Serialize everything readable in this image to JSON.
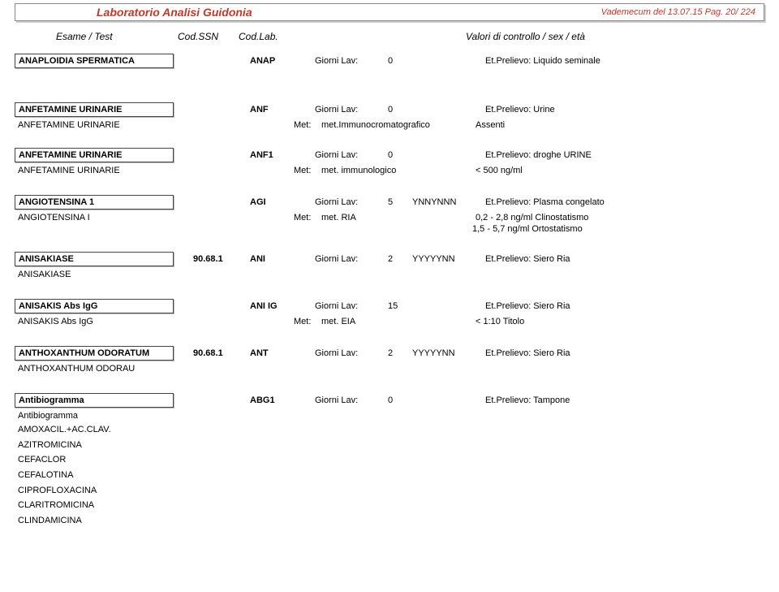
{
  "header": {
    "title": "Laboratorio Analisi Guidonia",
    "right": "Vademecum del 13.07.15 Pag. 20/ 224"
  },
  "columns": {
    "esame": "Esame / Test",
    "codssn": "Cod.SSN",
    "codlab": "Cod.Lab.",
    "valori": "Valori di controllo  / sex / età"
  },
  "tests": [
    {
      "name": "ANAPLOIDIA SPERMATICA",
      "codssn": "",
      "codlab": "ANAP",
      "giorni_label": "Giorni Lav:",
      "giorni": "0",
      "pattern": "",
      "prelievo_label": "Et.Prelievo:",
      "prelievo": "Liquido seminale",
      "subs": [],
      "gap_after": 28
    },
    {
      "name": "ANFETAMINE URINARIE",
      "codssn": "",
      "codlab": "ANF",
      "giorni_label": "Giorni Lav:",
      "giorni": "0",
      "pattern": "",
      "prelievo_label": "Et.Prelievo:",
      "prelievo": "Urine",
      "subs": [
        {
          "name": "ANFETAMINE URINARIE",
          "met_label": "Met:",
          "met": "met.Immunocromatografico",
          "result": "Assenti"
        }
      ],
      "gap_after": 8
    },
    {
      "name": "ANFETAMINE URINARIE",
      "codssn": "",
      "codlab": "ANF1",
      "giorni_label": "Giorni Lav:",
      "giorni": "0",
      "pattern": "",
      "prelievo_label": "Et.Prelievo:",
      "prelievo": "droghe URINE",
      "subs": [
        {
          "name": "ANFETAMINE URINARIE",
          "met_label": "Met:",
          "met": "met. immunologico",
          "result": "< 500 ng/ml"
        }
      ],
      "gap_after": 10
    },
    {
      "name": "ANGIOTENSINA 1",
      "codssn": "",
      "codlab": "AGI",
      "giorni_label": "Giorni Lav:",
      "giorni": "5",
      "pattern": "YNNYNNN",
      "prelievo_label": "Et.Prelievo:",
      "prelievo": "Plasma congelato",
      "subs": [
        {
          "name": "ANGIOTENSINA I",
          "met_label": "Met:",
          "met": "met. RIA",
          "result": "0,2 - 2,8 ng/ml Clinostatismo",
          "extra": "1,5 - 5,7 ng/ml Ortostatismo"
        }
      ],
      "gap_after": 8
    },
    {
      "name": "ANISAKIASE",
      "codssn": "90.68.1",
      "codlab": "ANI",
      "giorni_label": "Giorni Lav:",
      "giorni": "2",
      "pattern": "YYYYYNN",
      "prelievo_label": "Et.Prelievo:",
      "prelievo": "Siero Ria",
      "subs": [
        {
          "name": "ANISAKIASE"
        }
      ],
      "gap_after": 10
    },
    {
      "name": "ANISAKIS Abs IgG",
      "codssn": "",
      "codlab": "ANI IG",
      "giorni_label": "Giorni Lav:",
      "giorni": "15",
      "pattern": "",
      "prelievo_label": "Et.Prelievo:",
      "prelievo": "Siero Ria",
      "subs": [
        {
          "name": "ANISAKIS Abs IgG",
          "met_label": "Met:",
          "met": "met. EIA",
          "result": "< 1:10 Titolo"
        }
      ],
      "gap_after": 10
    },
    {
      "name": "ANTHOXANTHUM ODORATUM",
      "codssn": "90.68.1",
      "codlab": "ANT",
      "giorni_label": "Giorni Lav:",
      "giorni": "2",
      "pattern": "YYYYYNN",
      "prelievo_label": "Et.Prelievo:",
      "prelievo": "Siero Ria",
      "subs": [
        {
          "name": "ANTHOXANTHUM ODORAU"
        }
      ],
      "gap_after": 10
    },
    {
      "name": "Antibiogramma",
      "codssn": "",
      "codlab": "ABG1",
      "giorni_label": "Giorni Lav:",
      "giorni": "0",
      "pattern": "",
      "prelievo_label": "Et.Prelievo:",
      "prelievo": "Tampone",
      "subs": [
        {
          "name": "Antibiogramma"
        }
      ],
      "list": [
        "AMOXACIL.+AC.CLAV.",
        "AZITROMICINA",
        "CEFACLOR",
        "CEFALOTINA",
        "CIPROFLOXACINA",
        "CLARITROMICINA",
        "CLINDAMICINA"
      ],
      "gap_after": 0
    }
  ]
}
